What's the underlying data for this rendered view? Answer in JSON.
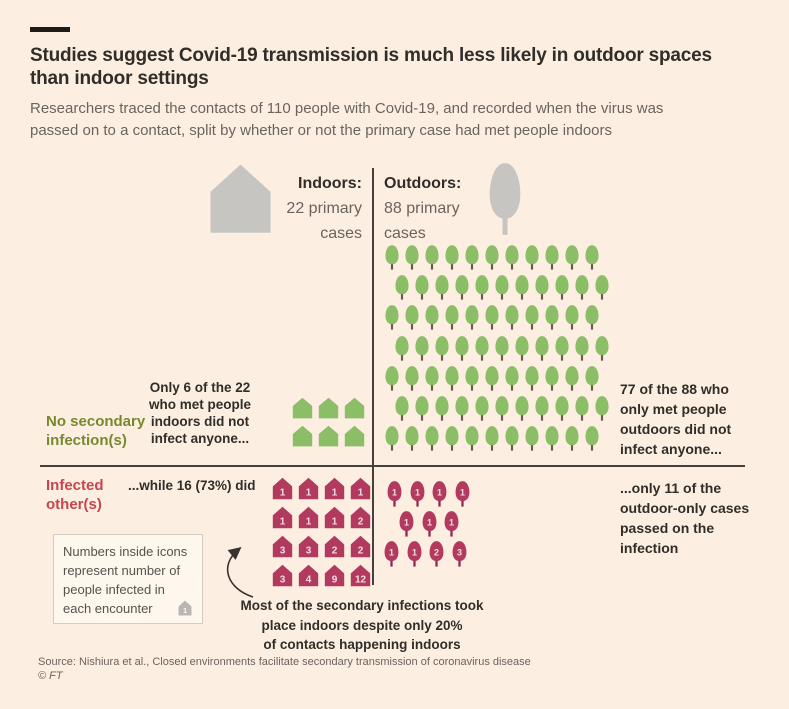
{
  "theme": {
    "background": "#FCEFE2",
    "text_dark": "#312D28",
    "text_gray": "#6B635D",
    "green": "#8CBE67",
    "green_trunk": "#6E5A4B",
    "olive_label": "#77882E",
    "crimson": "#B23A5F",
    "crimson_trunk": "#8D2A4C",
    "red_label": "#C8444F",
    "icon_number": "#F3DCE3",
    "gray_icon": "#C7C5C2",
    "divider": "#46413C"
  },
  "header": {
    "title": "Studies suggest Covid-19 transmission is much less likely in outdoor spaces\nthan indoor settings",
    "subtitle": "Researchers traced the contacts of 110 people with Covid-19, and recorded when the virus was\npassed on to a contact, split by whether or not the primary case had met people indoors"
  },
  "columns": {
    "indoors": {
      "label": "Indoors:",
      "cases": "22 primary\ncases"
    },
    "outdoors": {
      "label": "Outdoors:",
      "cases": "88 primary\ncases"
    }
  },
  "row_labels": {
    "no_secondary": "No secondary\ninfection(s)",
    "infected": "Infected\nother(s)"
  },
  "notes": {
    "indoor_no_infection": "Only 6 of the 22\nwho met people\nindoors did not\ninfect anyone...",
    "indoor_infected": "...while 16 (73%) did",
    "outdoor_no_infection": "77 of the 88 who\nonly met people\noutdoors did not\ninfect anyone...",
    "outdoor_infected": "...only 11 of the\noutdoor-only cases\npassed on the\ninfection",
    "annotation": "Most of the secondary infections took\nplace indoors despite only 20%\nof contacts happening indoors"
  },
  "legend": {
    "text": "Numbers inside icons\nrepresent number of\npeople infected in\neach encounter",
    "icon_number": "1"
  },
  "footer": {
    "source": "Source: Nishiura et al., Closed environments facilitate secondary transmission of coronavirus disease",
    "copyright": "© FT"
  },
  "chart_data": {
    "type": "pictogram",
    "title": "Studies suggest Covid-19 transmission is much less likely in outdoor spaces than indoor settings",
    "total_primary_cases": 110,
    "legend_note": "Numbers inside icons represent number of people infected in each encounter",
    "groups": [
      {
        "name": "Indoors",
        "icon": "house",
        "primary_cases": 22,
        "no_secondary_infection_count": 6,
        "infected_others_count": 16,
        "infected_others_share": "73%",
        "secondary_infections_per_case": [
          [
            1,
            1,
            1,
            1
          ],
          [
            1,
            1,
            1,
            2
          ],
          [
            3,
            3,
            2,
            2
          ],
          [
            3,
            4,
            9,
            12
          ]
        ]
      },
      {
        "name": "Outdoors",
        "icon": "tree",
        "primary_cases": 88,
        "no_secondary_infection_count": 77,
        "no_secondary_rows": [
          11,
          11,
          11,
          11,
          11,
          11,
          11
        ],
        "infected_others_count": 11,
        "secondary_infections_per_case": [
          [
            1,
            1,
            1,
            1
          ],
          [
            1,
            1,
            1
          ],
          [
            1,
            1,
            2,
            3
          ]
        ]
      }
    ]
  }
}
